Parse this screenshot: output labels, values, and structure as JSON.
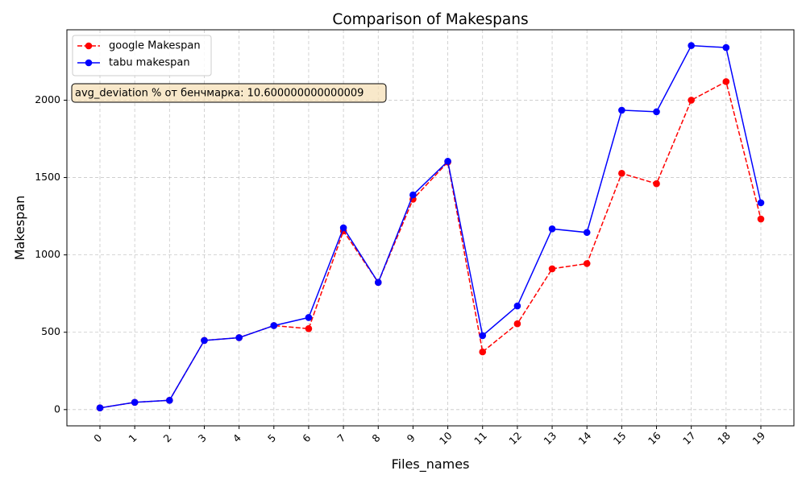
{
  "chart_data": {
    "type": "line",
    "title": "Comparison of Makespans",
    "xlabel": "Files_names",
    "ylabel": "Makespan",
    "x": [
      0,
      1,
      2,
      3,
      4,
      5,
      6,
      7,
      8,
      9,
      10,
      11,
      12,
      13,
      14,
      15,
      16,
      17,
      18,
      19
    ],
    "x_tick_labels": [
      "0",
      "1",
      "2",
      "3",
      "4",
      "5",
      "6",
      "7",
      "8",
      "9",
      "10",
      "11",
      "12",
      "13",
      "14",
      "15",
      "16",
      "17",
      "18",
      "19"
    ],
    "y_ticks": [
      0,
      500,
      1000,
      1500,
      2000
    ],
    "y_tick_labels": [
      "0",
      "500",
      "1000",
      "1500",
      "2000"
    ],
    "ylim": [
      -105,
      2455
    ],
    "grid": true,
    "legend_position": "top-left",
    "series": [
      {
        "name": "google Makespan",
        "color": "#ff0000",
        "line_style": "dashed",
        "marker": "circle",
        "values": [
          11,
          47,
          60,
          447,
          465,
          543,
          523,
          1155,
          822,
          1360,
          1600,
          373,
          555,
          910,
          944,
          1527,
          1460,
          2000,
          2120,
          1232
        ]
      },
      {
        "name": "tabu makespan",
        "color": "#0000ff",
        "line_style": "solid",
        "marker": "circle",
        "values": [
          11,
          47,
          60,
          447,
          465,
          543,
          595,
          1175,
          822,
          1388,
          1605,
          478,
          670,
          1168,
          1145,
          1935,
          1925,
          2353,
          2340,
          1337
        ]
      }
    ],
    "annotation": {
      "text": "avg_deviation % от бенчмарка: 10.600000000000009",
      "position": "top-left",
      "background": "#f5deb3"
    }
  }
}
